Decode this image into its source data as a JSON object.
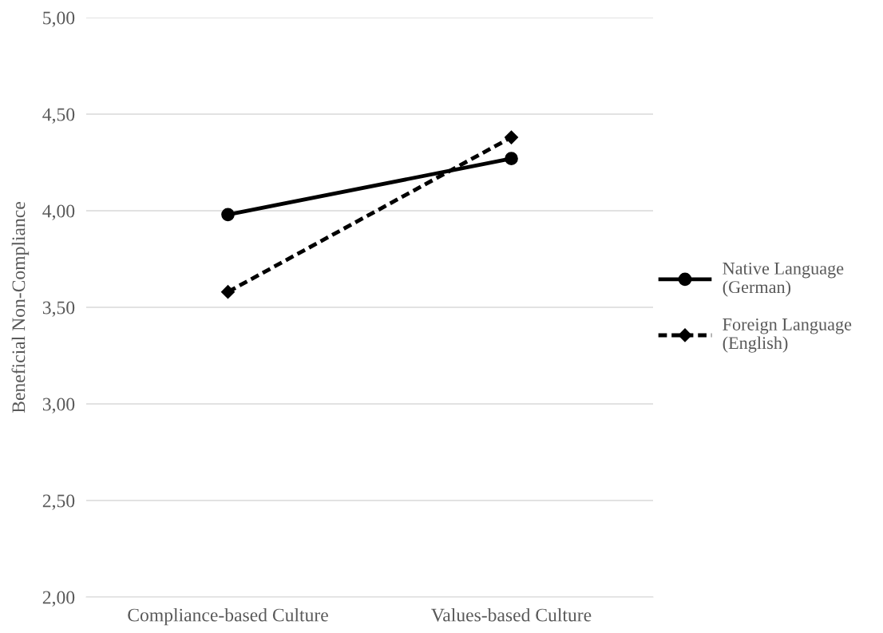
{
  "chart_data": {
    "type": "line",
    "ylabel": "Beneficial Non-Compliance",
    "categories": [
      "Compliance-based Culture",
      "Values-based Culture"
    ],
    "series": [
      {
        "name": "Native Language\n(German)",
        "color": "#000000",
        "values": [
          3.98,
          4.27
        ],
        "marker": "circle",
        "line_style": "solid"
      },
      {
        "name": "Foreign Language\n(English)",
        "color": "#000000",
        "values": [
          3.58,
          4.38
        ],
        "marker": "diamond",
        "line_style": "dashed"
      }
    ],
    "ylim": [
      2,
      5
    ],
    "yticks": [
      {
        "value": 2,
        "label": "2,00"
      },
      {
        "value": 2.5,
        "label": "2,50"
      },
      {
        "value": 3,
        "label": "3,00"
      },
      {
        "value": 3.5,
        "label": "3,50"
      },
      {
        "value": 4,
        "label": "4,00"
      },
      {
        "value": 4.5,
        "label": "4,50"
      },
      {
        "value": 5,
        "label": "5,00"
      }
    ],
    "grid": "y",
    "legend": "right"
  }
}
